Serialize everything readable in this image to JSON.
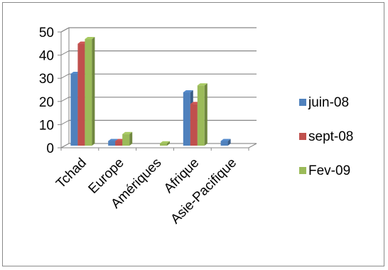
{
  "chart_data": {
    "type": "bar",
    "subtype": "3d-clustered-column",
    "categories": [
      "Tchad",
      "Europe",
      "Amériques",
      "Afrique",
      "Asie-Pacifique"
    ],
    "series": [
      {
        "name": "juin-08",
        "values": [
          31,
          2,
          0,
          23,
          2
        ],
        "color": "#4f81bd"
      },
      {
        "name": "sept-08",
        "values": [
          44,
          2,
          0,
          18,
          0
        ],
        "color": "#c0504d"
      },
      {
        "name": "Fev-09",
        "values": [
          46,
          5,
          1,
          26,
          0
        ],
        "color": "#9bbb59"
      }
    ],
    "yticks": [
      0,
      10,
      20,
      30,
      40,
      50
    ],
    "ylim": [
      0,
      50
    ],
    "grid": true,
    "legend_position": "right"
  }
}
